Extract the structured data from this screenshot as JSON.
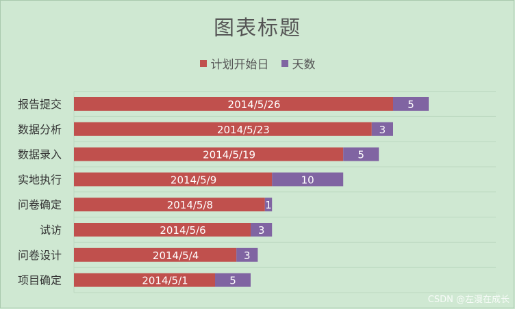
{
  "chart_data": {
    "type": "bar",
    "orientation": "horizontal",
    "stacked": true,
    "title": "图表标题",
    "legend_position": "top",
    "categories": [
      "报告提交",
      "数据分析",
      "数据录入",
      "实地执行",
      "问卷确定",
      "试访",
      "问卷设计",
      "项目确定"
    ],
    "series": [
      {
        "name": "计划开始日",
        "color": "#c0504d",
        "values": [
          "2014-05-26",
          "2014-05-23",
          "2014-05-19",
          "2014-05-09",
          "2014-05-08",
          "2014-05-06",
          "2014-05-04",
          "2014-05-01"
        ],
        "labels": [
          "2014/5/26",
          "2014/5/23",
          "2014/5/19",
          "2014/5/9",
          "2014/5/8",
          "2014/5/6",
          "2014/5/4",
          "2014/5/1"
        ]
      },
      {
        "name": "天数",
        "color": "#8064a2",
        "values": [
          5,
          3,
          5,
          10,
          1,
          3,
          3,
          5
        ],
        "labels": [
          "5",
          "3",
          "5",
          "10",
          "1",
          "3",
          "3",
          "5"
        ]
      }
    ],
    "grid": true
  },
  "watermark": "CSDN @左漫在成长"
}
